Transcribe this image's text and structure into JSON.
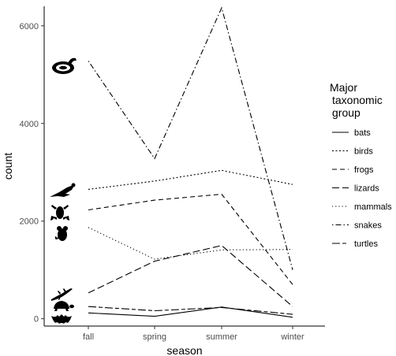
{
  "chart_data": {
    "type": "line",
    "categories": [
      "fall",
      "spring",
      "summer",
      "winter"
    ],
    "xlabel": "season",
    "ylabel": "count",
    "ylim": [
      -150,
      6400
    ],
    "yticks": [
      0,
      2000,
      4000,
      6000
    ],
    "grid": false,
    "legend_position": "right",
    "legend_title": [
      "Major",
      "taxonomic",
      "group"
    ],
    "series": [
      {
        "name": "bats",
        "linetype": "solid",
        "icon": "bat-icon",
        "values": [
          120,
          50,
          240,
          30
        ]
      },
      {
        "name": "birds",
        "linetype": "dotted",
        "icon": "bird-icon",
        "values": [
          2650,
          2820,
          3040,
          2750
        ]
      },
      {
        "name": "frogs",
        "linetype": "dashed",
        "icon": "frog-icon",
        "values": [
          2230,
          2430,
          2550,
          700
        ]
      },
      {
        "name": "lizards",
        "linetype": "longdash",
        "icon": "lizard-icon",
        "values": [
          530,
          1180,
          1500,
          250
        ]
      },
      {
        "name": "mammals",
        "linetype": "dotted2",
        "icon": "mouse-icon",
        "values": [
          1870,
          1220,
          1410,
          1420
        ]
      },
      {
        "name": "snakes",
        "linetype": "dotdash",
        "icon": "snake-icon",
        "values": [
          5280,
          3280,
          6370,
          1000
        ]
      },
      {
        "name": "turtles",
        "linetype": "twodash",
        "icon": "turtle-icon",
        "values": [
          250,
          165,
          230,
          90
        ]
      }
    ]
  }
}
